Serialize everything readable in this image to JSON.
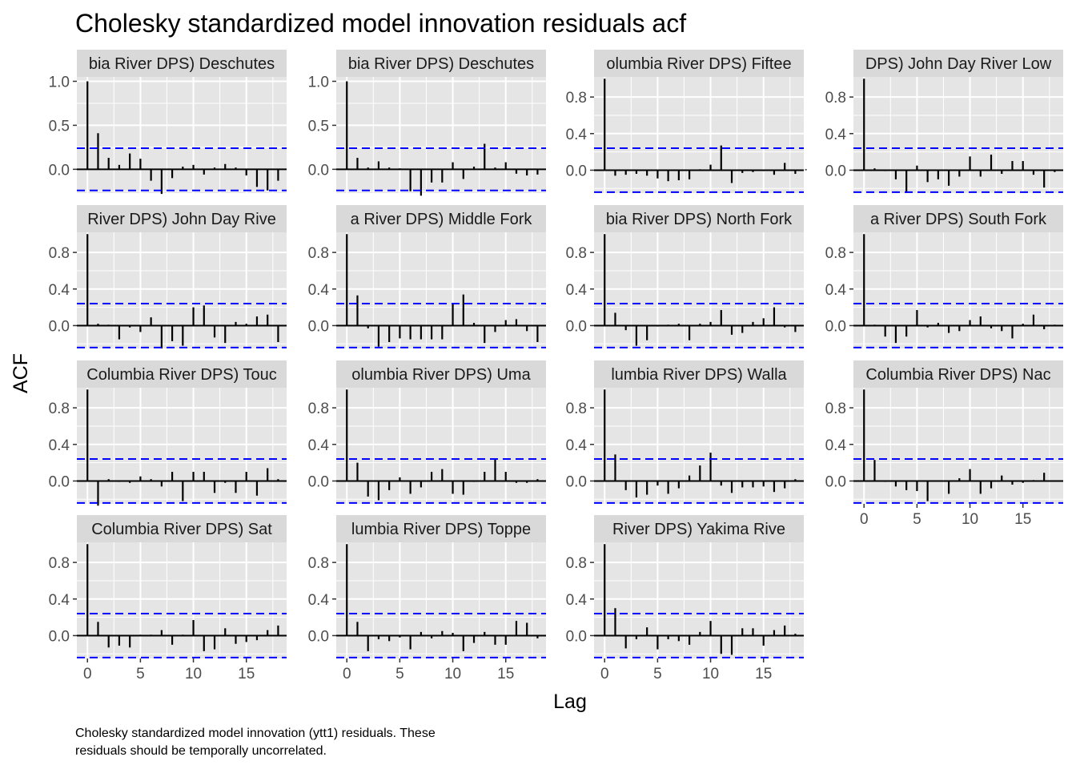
{
  "chart_data": {
    "type": "bar",
    "title": "Cholesky standardized model innovation residuals acf",
    "xlabel": "Lag",
    "ylabel": "ACF",
    "caption_lines": [
      "Cholesky standardized model innovation (ytt1) residuals. These",
      "residuals should be temporally uncorrelated."
    ],
    "xlim": [
      -1,
      18.8
    ],
    "x_ticks": [
      0,
      5,
      10,
      15
    ],
    "x_tick_labels": [
      "0",
      "5",
      "10",
      "15"
    ],
    "confidence_bound": 0.24,
    "colors": {
      "panel_background": "#e5e5e5",
      "strip_background": "#d9d9d9",
      "grid": "#ffffff",
      "bars": "#000000",
      "bounds": "#0000ff"
    },
    "panels": [
      {
        "strip": "(Columbia River DPS) Deschutes River Eastside",
        "strip_visible": "bia River DPS) Deschutes",
        "ylim": [
          -0.27,
          1.05
        ],
        "y_ticks": [
          0,
          0.5,
          1.0
        ],
        "y_tick_labels": [
          "0.0",
          "0.5",
          "1.0"
        ],
        "acf": [
          1.0,
          0.41,
          0.13,
          0.05,
          0.18,
          0.12,
          -0.13,
          -0.28,
          -0.1,
          0.03,
          0.05,
          -0.06,
          0.02,
          0.06,
          0.02,
          -0.07,
          -0.2,
          -0.24,
          -0.13
        ]
      },
      {
        "strip": "(Columbia River DPS) Deschutes River Westside",
        "strip_visible": "bia River DPS) Deschutes",
        "ylim": [
          -0.27,
          1.05
        ],
        "y_ticks": [
          0,
          0.5,
          1.0
        ],
        "y_tick_labels": [
          "0.0",
          "0.5",
          "1.0"
        ],
        "acf": [
          1.0,
          0.13,
          0.02,
          0.09,
          0.02,
          0.01,
          -0.25,
          -0.3,
          -0.15,
          -0.15,
          0.08,
          -0.11,
          0.03,
          0.29,
          0.02,
          0.08,
          -0.05,
          -0.07,
          -0.06
        ]
      },
      {
        "strip": "(Columbia River DPS) Fifteenmile Creek",
        "strip_visible": "olumbia River DPS) Fiftee",
        "ylim": [
          -0.25,
          1.02
        ],
        "y_ticks": [
          0,
          0.4,
          0.8
        ],
        "y_tick_labels": [
          "0.0",
          "0.4",
          "0.8"
        ],
        "acf": [
          1.0,
          -0.06,
          -0.05,
          -0.04,
          -0.06,
          -0.09,
          -0.12,
          -0.11,
          -0.1,
          0.01,
          0.06,
          0.27,
          -0.14,
          -0.03,
          -0.02,
          -0.01,
          -0.05,
          0.08,
          -0.04,
          0.01
        ]
      },
      {
        "strip": "(Columbia River DPS) John Day River Lower Mainstem Tributaries",
        "strip_visible": "DPS) John Day River Low",
        "ylim": [
          -0.25,
          1.02
        ],
        "y_ticks": [
          0,
          0.4,
          0.8
        ],
        "y_tick_labels": [
          "0.0",
          "0.4",
          "0.8"
        ],
        "acf": [
          1.0,
          0.02,
          -0.01,
          -0.1,
          -0.25,
          0.05,
          -0.13,
          -0.1,
          -0.17,
          -0.07,
          0.15,
          -0.07,
          0.17,
          -0.04,
          0.1,
          0.1,
          -0.05,
          -0.19,
          -0.02
        ]
      },
      {
        "strip": "(Columbia River DPS) John Day River Middle Fork",
        "strip_visible": "River DPS) John Day Rive",
        "ylim": [
          -0.25,
          1.02
        ],
        "y_ticks": [
          0,
          0.4,
          0.8
        ],
        "y_tick_labels": [
          "0.0",
          "0.4",
          "0.8"
        ],
        "acf": [
          1.0,
          0.02,
          0.01,
          -0.15,
          -0.02,
          -0.07,
          0.09,
          -0.25,
          -0.17,
          -0.22,
          0.2,
          0.22,
          -0.13,
          -0.19,
          0.04,
          0.02,
          0.1,
          0.12,
          -0.18
        ]
      },
      {
        "strip": "(Columbia River DPS) Middle Fork John Day River",
        "strip_visible": "a River DPS) Middle Fork",
        "ylim": [
          -0.25,
          1.02
        ],
        "y_ticks": [
          0,
          0.4,
          0.8
        ],
        "y_tick_labels": [
          "0.0",
          "0.4",
          "0.8"
        ],
        "acf": [
          1.0,
          0.33,
          -0.03,
          -0.23,
          -0.18,
          -0.14,
          -0.15,
          -0.15,
          -0.15,
          -0.15,
          0.24,
          0.34,
          0.03,
          -0.19,
          -0.07,
          0.06,
          0.07,
          -0.06,
          -0.18
        ]
      },
      {
        "strip": "(Columbia River DPS) North Fork John Day River",
        "strip_visible": "bia River DPS) North Fork",
        "ylim": [
          -0.25,
          1.02
        ],
        "y_ticks": [
          0,
          0.4,
          0.8
        ],
        "y_tick_labels": [
          "0.0",
          "0.4",
          "0.8"
        ],
        "acf": [
          1.0,
          0.14,
          -0.05,
          -0.22,
          -0.16,
          -0.01,
          0.01,
          0.02,
          -0.16,
          0.02,
          0.04,
          0.17,
          -0.1,
          -0.08,
          0.04,
          0.08,
          0.2,
          -0.02,
          -0.07
        ]
      },
      {
        "strip": "(Columbia River DPS) South Fork John Day River",
        "strip_visible": "a River DPS) South Fork",
        "ylim": [
          -0.25,
          1.02
        ],
        "y_ticks": [
          0,
          0.4,
          0.8
        ],
        "y_tick_labels": [
          "0.0",
          "0.4",
          "0.8"
        ],
        "acf": [
          1.0,
          0.01,
          -0.12,
          -0.19,
          -0.12,
          0.17,
          -0.02,
          0.03,
          -0.08,
          -0.06,
          0.06,
          0.1,
          -0.03,
          -0.06,
          -0.14,
          0.02,
          0.12,
          -0.04,
          0.01
        ]
      },
      {
        "strip": "(Columbia River DPS) Touchet River",
        "strip_visible": "Columbia River DPS) Touc",
        "ylim": [
          -0.25,
          1.02
        ],
        "y_ticks": [
          0,
          0.4,
          0.8
        ],
        "y_tick_labels": [
          "0.0",
          "0.4",
          "0.8"
        ],
        "acf": [
          1.0,
          -0.27,
          0.02,
          -0.01,
          -0.02,
          0.05,
          0.02,
          -0.06,
          0.1,
          -0.22,
          0.1,
          0.1,
          -0.13,
          -0.02,
          -0.13,
          0.1,
          -0.16,
          0.14,
          0.02
        ]
      },
      {
        "strip": "(Columbia River DPS) Umatilla River",
        "strip_visible": "olumbia River DPS) Uma",
        "ylim": [
          -0.25,
          1.02
        ],
        "y_ticks": [
          0,
          0.4,
          0.8
        ],
        "y_tick_labels": [
          "0.0",
          "0.4",
          "0.8"
        ],
        "acf": [
          1.0,
          0.2,
          -0.17,
          -0.21,
          -0.1,
          0.04,
          -0.14,
          -0.07,
          0.1,
          0.13,
          -0.14,
          -0.15,
          -0.01,
          0.1,
          0.24,
          0.1,
          -0.02,
          -0.02,
          0.02
        ]
      },
      {
        "strip": "(Columbia River DPS) Walla Walla River",
        "strip_visible": "lumbia River DPS) Walla",
        "ylim": [
          -0.25,
          1.02
        ],
        "y_ticks": [
          0,
          0.4,
          0.8
        ],
        "y_tick_labels": [
          "0.0",
          "0.4",
          "0.8"
        ],
        "acf": [
          1.0,
          0.29,
          -0.1,
          -0.18,
          -0.15,
          -0.05,
          -0.14,
          -0.08,
          0.06,
          0.17,
          0.31,
          -0.05,
          -0.13,
          -0.07,
          -0.07,
          -0.06,
          -0.12,
          -0.08,
          0.02
        ]
      },
      {
        "strip": "(Columbia River DPS) Naches River",
        "strip_visible": "Columbia River DPS) Nac",
        "ylim": [
          -0.25,
          1.02
        ],
        "y_ticks": [
          0,
          0.4,
          0.8
        ],
        "y_tick_labels": [
          "0.0",
          "0.4",
          "0.8"
        ],
        "acf": [
          1.0,
          0.23,
          -0.01,
          -0.06,
          -0.1,
          -0.11,
          -0.22,
          0.0,
          -0.14,
          0.03,
          0.13,
          -0.14,
          -0.08,
          0.06,
          -0.04,
          -0.02,
          0.01,
          0.09,
          0.0
        ]
      },
      {
        "strip": "(Columbia River DPS) Satus Creek",
        "strip_visible": "Columbia River DPS) Sat",
        "ylim": [
          -0.25,
          1.02
        ],
        "y_ticks": [
          0,
          0.4,
          0.8
        ],
        "y_tick_labels": [
          "0.0",
          "0.4",
          "0.8"
        ],
        "acf": [
          1.0,
          0.15,
          -0.13,
          -0.11,
          -0.13,
          0.01,
          0.01,
          0.06,
          -0.1,
          0.01,
          0.17,
          -0.17,
          -0.15,
          0.08,
          -0.09,
          -0.07,
          -0.05,
          0.06,
          0.11
        ]
      },
      {
        "strip": "(Columbia River DPS) Toppenish Creek",
        "strip_visible": "lumbia River DPS) Toppe",
        "ylim": [
          -0.25,
          1.02
        ],
        "y_ticks": [
          0,
          0.4,
          0.8
        ],
        "y_tick_labels": [
          "0.0",
          "0.4",
          "0.8"
        ],
        "acf": [
          1.0,
          0.15,
          -0.17,
          -0.04,
          -0.06,
          -0.02,
          -0.15,
          0.04,
          -0.03,
          0.05,
          0.03,
          -0.17,
          -0.08,
          0.04,
          -0.1,
          -0.1,
          0.16,
          0.14,
          -0.03
        ]
      },
      {
        "strip": "(Columbia River DPS) Yakima River Upper Mainstem",
        "strip_visible": "River DPS) Yakima Rive",
        "ylim": [
          -0.25,
          1.02
        ],
        "y_ticks": [
          0,
          0.4,
          0.8
        ],
        "y_tick_labels": [
          "0.0",
          "0.4",
          "0.8"
        ],
        "acf": [
          1.0,
          0.3,
          -0.14,
          -0.04,
          0.09,
          -0.15,
          -0.04,
          -0.06,
          -0.1,
          0.04,
          0.16,
          -0.2,
          -0.21,
          0.08,
          0.08,
          -0.11,
          0.06,
          0.11,
          0.02
        ]
      }
    ]
  }
}
